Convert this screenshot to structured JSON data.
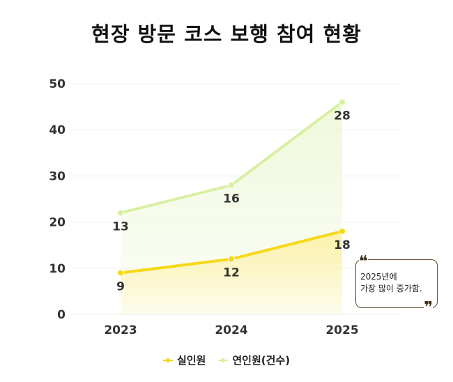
{
  "chart_data": {
    "type": "line",
    "title": "현장 방문 코스 보행 참여 현황",
    "categories": [
      "2023",
      "2024",
      "2025"
    ],
    "series": [
      {
        "name": "실인원",
        "values": [
          9,
          12,
          18
        ],
        "color": "#f7d817",
        "fill": "#fdf1a8"
      },
      {
        "name": "연인원(건수)",
        "values": [
          13,
          16,
          28
        ],
        "color": "#d7f0a2",
        "fill": "#eef8d8"
      }
    ],
    "point_labels": [
      {
        "series": "실인원",
        "values": [
          "9",
          "12",
          "18"
        ]
      },
      {
        "series": "연인원(건수)",
        "values": [
          "13",
          "16",
          "28"
        ]
      }
    ],
    "plotted_y": {
      "실인원": [
        9,
        12,
        18
      ],
      "연인원(건수)": [
        22,
        28,
        46
      ]
    },
    "yticks": [
      0,
      10,
      20,
      30,
      40,
      50
    ],
    "ylim": [
      0,
      50
    ],
    "xlabel": "",
    "ylabel": "",
    "grid": true,
    "legend_position": "bottom-center",
    "annotation": {
      "line1": "2025년에",
      "line2": "가장 많이 증가함.",
      "open_quote": "❝",
      "close_quote": "❞"
    }
  }
}
